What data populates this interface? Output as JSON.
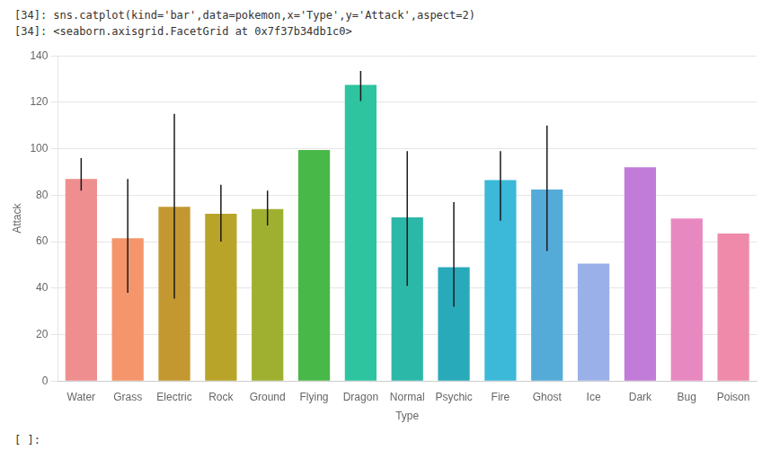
{
  "chart_data": {
    "type": "bar",
    "categories": [
      "Water",
      "Grass",
      "Electric",
      "Rock",
      "Ground",
      "Flying",
      "Dragon",
      "Normal",
      "Psychic",
      "Fire",
      "Ghost",
      "Ice",
      "Dark",
      "Bug",
      "Poison"
    ],
    "values": [
      87.0,
      61.5,
      75.0,
      72.0,
      74.0,
      99.5,
      127.5,
      70.5,
      49.0,
      86.5,
      82.5,
      50.5,
      92.0,
      70.0,
      63.5
    ],
    "ci_low": [
      82.0,
      38.0,
      35.5,
      60.0,
      67.0,
      99.5,
      120.5,
      41.0,
      32.0,
      69.0,
      56.0,
      50.5,
      92.0,
      70.0,
      63.5
    ],
    "ci_high": [
      96.0,
      87.0,
      115.0,
      84.5,
      82.0,
      99.5,
      133.5,
      99.0,
      77.0,
      99.0,
      110.0,
      50.5,
      92.0,
      70.0,
      63.5
    ],
    "colors": [
      "#EF8E8E",
      "#F4956B",
      "#C49830",
      "#B8A428",
      "#9FB030",
      "#48B848",
      "#2EC4A0",
      "#2CB8A8",
      "#28AABA",
      "#3CB8D8",
      "#55ABD8",
      "#9AB0E8",
      "#C07CD8",
      "#E888C0",
      "#F08AAA"
    ],
    "xlabel": "Type",
    "ylabel": "Attack",
    "ylim": [
      0,
      140
    ],
    "yticks": [
      0,
      20,
      40,
      60,
      80,
      100,
      120,
      140
    ],
    "grid": true,
    "annotations": [
      "[34]: sns.catplot(kind='bar',data=pokemon,x='Type',y='Attack',aspect=2)",
      "[34]: <seaborn.axisgrid.FacetGrid at 0x7f37b34db1c0>",
      "[ ]:"
    ]
  }
}
